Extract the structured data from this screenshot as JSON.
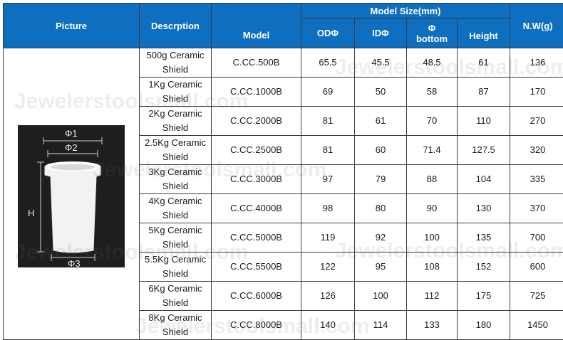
{
  "headers": {
    "picture": "Picture",
    "description": "Descrption",
    "model": "Model",
    "model_size": "Model Size(mm)",
    "od": "ODΦ",
    "id": "IDΦ",
    "bottom_phi": "Φ",
    "bottom": "bottom",
    "height": "Height",
    "nw": "N.W(g)"
  },
  "diagram": {
    "phi1": "Φ1",
    "phi2": "Φ2",
    "phi3": "Φ3",
    "h": "H"
  },
  "watermark": "Jewelerstoolsmall.com",
  "rows": [
    {
      "desc1": "500g Ceramic",
      "desc2": "Shield",
      "model": "C.CC.500B",
      "od": "65.5",
      "id": "45.5",
      "bottom": "48.5",
      "height": "61",
      "nw": "136"
    },
    {
      "desc1": "1Kg Ceramic",
      "desc2": "Shield",
      "model": "C.CC.1000B",
      "od": "69",
      "id": "50",
      "bottom": "58",
      "height": "87",
      "nw": "170"
    },
    {
      "desc1": "2Kg Ceramic",
      "desc2": "Shield",
      "model": "C.CC.2000B",
      "od": "81",
      "id": "61",
      "bottom": "70",
      "height": "110",
      "nw": "270"
    },
    {
      "desc1": "2.5Kg Ceramic",
      "desc2": "Shield",
      "model": "C.CC.2500B",
      "od": "81",
      "id": "60",
      "bottom": "71.4",
      "height": "127.5",
      "nw": "320"
    },
    {
      "desc1": "3Kg Ceramic",
      "desc2": "Shield",
      "model": "C.CC.3000B",
      "od": "97",
      "id": "79",
      "bottom": "88",
      "height": "104",
      "nw": "335"
    },
    {
      "desc1": "4Kg Ceramic",
      "desc2": "Shield",
      "model": "C.CC.4000B",
      "od": "98",
      "id": "80",
      "bottom": "90",
      "height": "130",
      "nw": "370"
    },
    {
      "desc1": "5Kg Ceramic",
      "desc2": "Shield",
      "model": "C.CC.5000B",
      "od": "119",
      "id": "92",
      "bottom": "100",
      "height": "135",
      "nw": "700"
    },
    {
      "desc1": "5.5Kg Ceramic",
      "desc2": "Shield",
      "model": "C.CC.5500B",
      "od": "122",
      "id": "95",
      "bottom": "108",
      "height": "152",
      "nw": "600"
    },
    {
      "desc1": "6Kg Ceramic",
      "desc2": "Shield",
      "model": "C.CC.6000B",
      "od": "126",
      "id": "100",
      "bottom": "112",
      "height": "175",
      "nw": "725"
    },
    {
      "desc1": "8Kg Ceramic",
      "desc2": "Shield",
      "model": "C.CC.8000B",
      "od": "140",
      "id": "114",
      "bottom": "133",
      "height": "180",
      "nw": "1450"
    }
  ]
}
